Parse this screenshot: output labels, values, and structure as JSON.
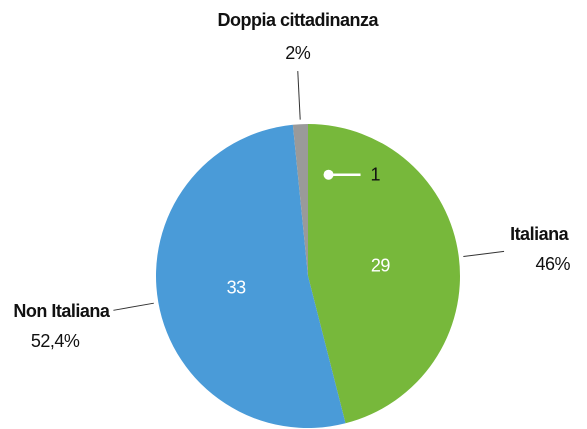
{
  "chart_data": {
    "type": "pie",
    "categories": [
      "Italiana",
      "Non Italiana",
      "Doppia cittadinanza"
    ],
    "values": [
      29,
      33,
      1
    ],
    "percent_labels": [
      "46%",
      "52,4%",
      "2%"
    ],
    "colors": [
      "#77b83b",
      "#4a9bd8",
      "#9a9a9a"
    ]
  }
}
